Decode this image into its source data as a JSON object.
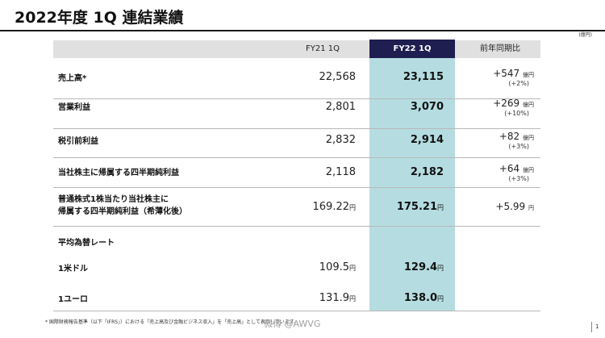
{
  "title": "2022年度 1Q 連結業績",
  "unit": "(億円)",
  "headers": {
    "fy21": "FY21 1Q",
    "fy22": "FY22 1Q",
    "yoy": "前年同期比"
  },
  "rows": [
    {
      "label": "売上高*",
      "fy21": "22,568",
      "fy22": "23,115",
      "yoy": "+547",
      "yoy_unit": "億円",
      "pct": "(+2%)"
    },
    {
      "label": "営業利益",
      "fy21": "2,801",
      "fy22": "3,070",
      "yoy": "+269",
      "yoy_unit": "億円",
      "pct": "(+10%)"
    },
    {
      "label": "税引前利益",
      "fy21": "2,832",
      "fy22": "2,914",
      "yoy": "+82",
      "yoy_unit": "億円",
      "pct": "(+3%)"
    },
    {
      "label": "当社株主に帰属する四半期純利益",
      "fy21": "2,118",
      "fy22": "2,182",
      "yoy": "+64",
      "yoy_unit": "億円",
      "pct": "(+3%)"
    },
    {
      "label_line1": "普通株式1株当たり当社株主に",
      "label_line2": "帰属する四半期純利益（希薄化後）",
      "fy21": "169.22",
      "fy22": "175.21",
      "yoy": "+5.99",
      "yoy_unit": "円"
    }
  ],
  "fx_section": {
    "heading": "平均為替レート",
    "items": [
      {
        "label": "1米ドル",
        "fy21": "109.5",
        "fy22": "129.4"
      },
      {
        "label": "1ユーロ",
        "fy21": "131.9",
        "fy22": "138.0"
      }
    ]
  },
  "yen": "円",
  "footnote": "* 国際財務報告基準（以下「IFRS」）における「売上高及び金融ビジネス収入」を「売上高」として表示しています。",
  "watermark": "微博 @AWVG",
  "page_number": "1"
}
